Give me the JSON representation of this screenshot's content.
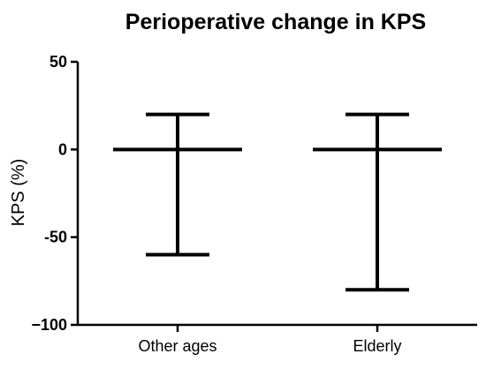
{
  "chart_data": {
    "type": "box",
    "title": "Perioperative change in KPS",
    "xlabel": "",
    "ylabel": "KPS (%)",
    "ylim": [
      -100,
      50
    ],
    "yticks": [
      50,
      0,
      -50,
      -100
    ],
    "ytick_labels": [
      "50",
      "0",
      "-50",
      "−100"
    ],
    "categories": [
      "Other ages",
      "Elderly"
    ],
    "series": [
      {
        "values": [
          {
            "category": "Other ages",
            "min": -60,
            "median": 0,
            "max": 20
          },
          {
            "category": "Elderly",
            "min": -80,
            "median": 0,
            "max": 20
          }
        ]
      }
    ],
    "grid": false,
    "legend": "none"
  }
}
